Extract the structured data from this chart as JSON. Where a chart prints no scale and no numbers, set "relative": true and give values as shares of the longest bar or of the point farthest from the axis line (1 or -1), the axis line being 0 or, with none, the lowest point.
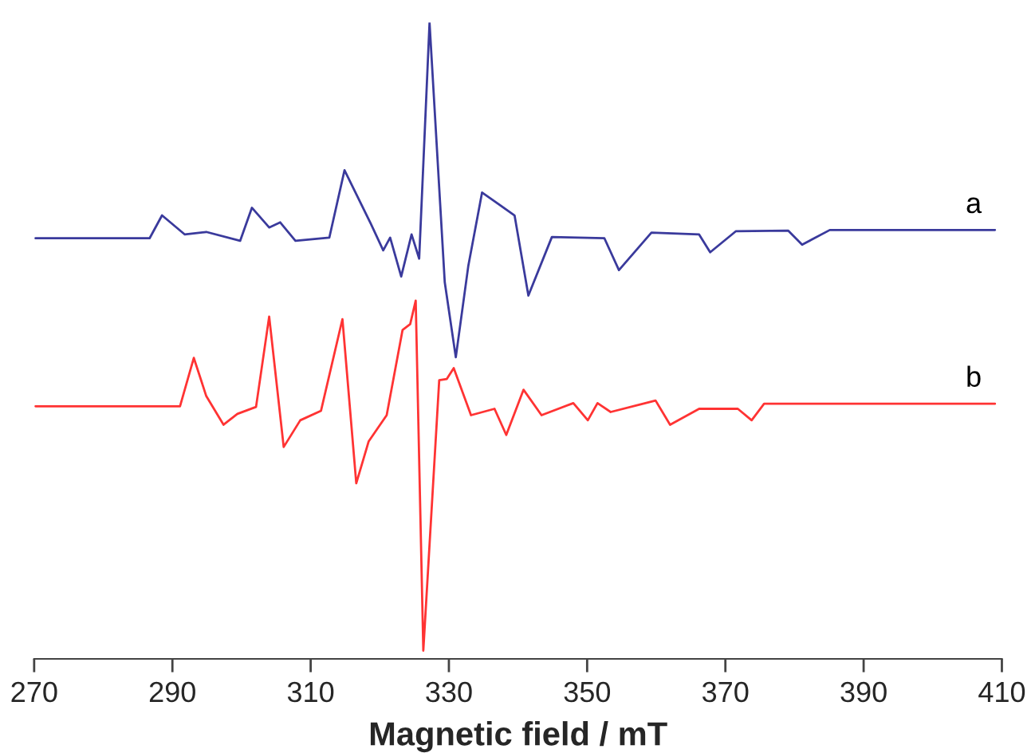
{
  "chart_data": {
    "type": "line",
    "relative": true,
    "xlabel": "Magnetic field / mT",
    "xlim": [
      270,
      410
    ],
    "xticks": [
      270,
      290,
      310,
      330,
      350,
      370,
      390,
      410
    ],
    "grid": false,
    "legend": false,
    "marker": "none",
    "line_style": "solid",
    "series": [
      {
        "name": "a",
        "color": "#3a3a9c",
        "x": [
          270.2,
          286.7,
          288.5,
          291.8,
          294.9,
          299.8,
          301.5,
          304.0,
          305.6,
          307.8,
          312.7,
          314.9,
          318.7,
          320.5,
          321.5,
          323.1,
          324.6,
          325.7,
          327.2,
          329.4,
          331.0,
          332.8,
          334.8,
          339.5,
          341.5,
          344.9,
          352.5,
          354.6,
          359.3,
          366.2,
          367.8,
          371.5,
          379.1,
          381.1,
          385.1,
          409.0
        ],
        "values": [
          0.661,
          0.661,
          0.697,
          0.667,
          0.671,
          0.657,
          0.709,
          0.678,
          0.686,
          0.657,
          0.662,
          0.768,
          0.684,
          0.642,
          0.662,
          0.601,
          0.667,
          0.629,
          1.0,
          0.592,
          0.474,
          0.617,
          0.733,
          0.697,
          0.571,
          0.663,
          0.661,
          0.611,
          0.67,
          0.667,
          0.639,
          0.672,
          0.673,
          0.651,
          0.674,
          0.674
        ]
      },
      {
        "name": "b",
        "color": "#ff3333",
        "x": [
          270.2,
          291.1,
          293.1,
          294.9,
          297.4,
          299.4,
          302.1,
          304.0,
          306.1,
          308.5,
          311.5,
          314.6,
          316.6,
          318.4,
          321.0,
          323.3,
          324.4,
          325.2,
          326.3,
          328.6,
          329.7,
          330.7,
          333.2,
          336.6,
          338.3,
          340.8,
          343.4,
          348.0,
          350.1,
          351.5,
          353.4,
          359.9,
          362.0,
          366.2,
          371.8,
          373.8,
          375.6,
          409.0
        ],
        "values": [
          0.397,
          0.397,
          0.473,
          0.413,
          0.368,
          0.385,
          0.396,
          0.538,
          0.333,
          0.375,
          0.39,
          0.534,
          0.276,
          0.342,
          0.383,
          0.517,
          0.526,
          0.563,
          0.013,
          0.438,
          0.44,
          0.457,
          0.383,
          0.393,
          0.352,
          0.423,
          0.383,
          0.402,
          0.375,
          0.402,
          0.388,
          0.406,
          0.368,
          0.393,
          0.393,
          0.375,
          0.401,
          0.401
        ]
      }
    ]
  }
}
